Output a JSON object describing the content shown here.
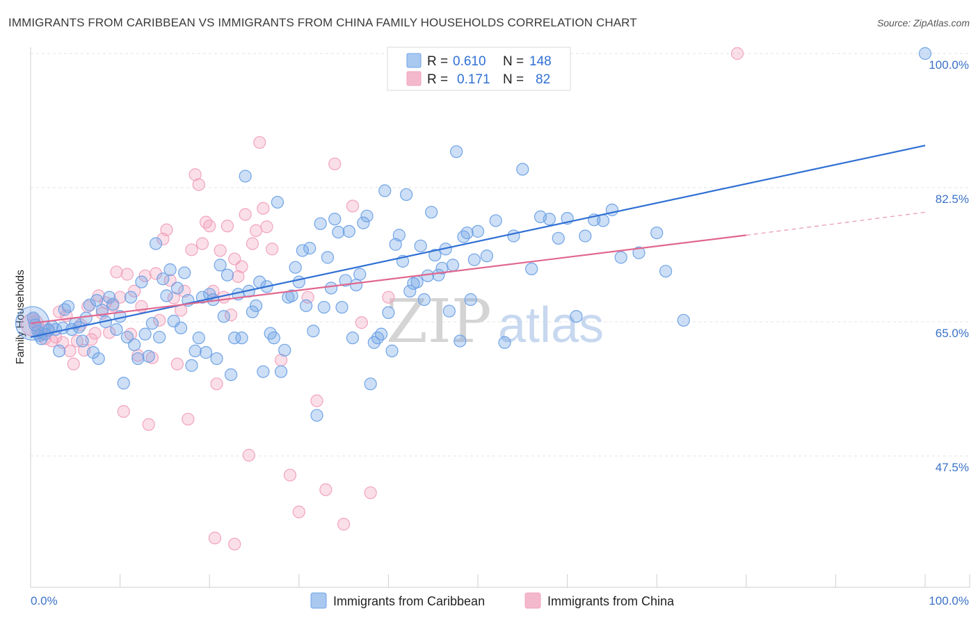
{
  "header": {
    "title": "IMMIGRANTS FROM CARIBBEAN VS IMMIGRANTS FROM CHINA FAMILY HOUSEHOLDS CORRELATION CHART",
    "source": "Source: ZipAtlas.com"
  },
  "watermark": {
    "part1": "ZIP",
    "part2": "atlas"
  },
  "legend": {
    "rows": [
      {
        "r_label": "R =",
        "r_value": "0.610",
        "n_label": "N =",
        "n_value": "148",
        "color": "#a8c8f0"
      },
      {
        "r_label": "R =",
        "r_value": "0.171",
        "n_label": "N =",
        "n_value": "82",
        "color": "#f4b8cc"
      }
    ]
  },
  "chart_data": {
    "type": "scatter",
    "ylabel": "Family Households",
    "xlabel": "",
    "xlim": [
      0,
      100
    ],
    "ylim": [
      32,
      102
    ],
    "x_tick_labels": [
      "0.0%",
      "100.0%"
    ],
    "y_ticks": [
      {
        "value": 100.0,
        "label": "100.0%"
      },
      {
        "value": 82.5,
        "label": "82.5%"
      },
      {
        "value": 65.0,
        "label": "65.0%"
      },
      {
        "value": 47.5,
        "label": "47.5%"
      }
    ],
    "grid": "horizontal dashed",
    "legend_placement": "top-center",
    "series": [
      {
        "name": "Immigrants from Caribbean",
        "color": "#6fa3e6",
        "line_color": "#2f6fd4",
        "trend": {
          "x0": 0,
          "y0": 63.0,
          "x1": 100,
          "y1": 88.0
        },
        "points": [
          [
            0.3,
            65.5
          ],
          [
            0.5,
            64.6
          ],
          [
            0.8,
            63.8
          ],
          [
            1.0,
            63.2
          ],
          [
            1.2,
            62.8
          ],
          [
            1.6,
            63.4
          ],
          [
            2.0,
            63.9
          ],
          [
            2.4,
            64.4
          ],
          [
            2.8,
            64.0
          ],
          [
            3.2,
            61.2
          ],
          [
            3.6,
            64.2
          ],
          [
            3.8,
            66.6
          ],
          [
            4.2,
            67.0
          ],
          [
            4.6,
            64.0
          ],
          [
            5.0,
            64.8
          ],
          [
            5.4,
            64.3
          ],
          [
            5.8,
            62.5
          ],
          [
            6.2,
            65.5
          ],
          [
            6.6,
            67.2
          ],
          [
            7.0,
            61.0
          ],
          [
            7.4,
            67.8
          ],
          [
            7.6,
            60.2
          ],
          [
            8.0,
            66.5
          ],
          [
            8.4,
            65.0
          ],
          [
            8.8,
            68.2
          ],
          [
            9.2,
            67.3
          ],
          [
            9.6,
            64.0
          ],
          [
            10.0,
            65.7
          ],
          [
            10.4,
            57.0
          ],
          [
            10.8,
            63.0
          ],
          [
            11.2,
            68.2
          ],
          [
            11.6,
            62.0
          ],
          [
            12.0,
            60.2
          ],
          [
            12.4,
            70.2
          ],
          [
            12.8,
            63.4
          ],
          [
            13.2,
            60.5
          ],
          [
            13.6,
            64.8
          ],
          [
            14.0,
            75.2
          ],
          [
            14.4,
            63.0
          ],
          [
            14.8,
            70.6
          ],
          [
            15.2,
            68.4
          ],
          [
            15.6,
            71.8
          ],
          [
            16.0,
            65.1
          ],
          [
            16.4,
            69.4
          ],
          [
            16.8,
            64.2
          ],
          [
            17.2,
            71.4
          ],
          [
            17.6,
            67.8
          ],
          [
            18.0,
            59.3
          ],
          [
            18.4,
            61.2
          ],
          [
            18.8,
            62.9
          ],
          [
            19.2,
            68.2
          ],
          [
            19.6,
            61.0
          ],
          [
            20.0,
            68.6
          ],
          [
            20.4,
            67.9
          ],
          [
            20.8,
            60.2
          ],
          [
            21.2,
            72.4
          ],
          [
            21.6,
            65.7
          ],
          [
            22.0,
            71.1
          ],
          [
            22.4,
            58.1
          ],
          [
            22.8,
            62.9
          ],
          [
            23.2,
            68.6
          ],
          [
            23.6,
            62.9
          ],
          [
            24.0,
            84.0
          ],
          [
            24.4,
            69.0
          ],
          [
            24.8,
            66.3
          ],
          [
            25.2,
            67.1
          ],
          [
            25.6,
            70.2
          ],
          [
            26.0,
            58.5
          ],
          [
            26.4,
            69.6
          ],
          [
            26.8,
            63.5
          ],
          [
            27.2,
            62.9
          ],
          [
            27.6,
            80.6
          ],
          [
            28.0,
            58.5
          ],
          [
            28.4,
            61.3
          ],
          [
            28.8,
            68.2
          ],
          [
            29.2,
            68.4
          ],
          [
            29.6,
            72.1
          ],
          [
            30.0,
            70.2
          ],
          [
            30.4,
            74.3
          ],
          [
            30.8,
            67.1
          ],
          [
            31.2,
            74.6
          ],
          [
            31.6,
            63.8
          ],
          [
            32.0,
            52.8
          ],
          [
            32.4,
            77.8
          ],
          [
            32.8,
            66.9
          ],
          [
            33.2,
            73.4
          ],
          [
            33.6,
            69.4
          ],
          [
            34.0,
            78.4
          ],
          [
            34.4,
            76.7
          ],
          [
            34.8,
            66.9
          ],
          [
            35.2,
            70.4
          ],
          [
            35.6,
            76.8
          ],
          [
            36.0,
            62.9
          ],
          [
            36.4,
            69.8
          ],
          [
            36.8,
            71.2
          ],
          [
            37.2,
            77.9
          ],
          [
            37.6,
            78.8
          ],
          [
            38.0,
            56.9
          ],
          [
            38.4,
            62.3
          ],
          [
            38.8,
            62.9
          ],
          [
            39.2,
            63.4
          ],
          [
            39.6,
            82.1
          ],
          [
            40.0,
            66.2
          ],
          [
            40.4,
            61.2
          ],
          [
            40.8,
            75.1
          ],
          [
            41.2,
            76.3
          ],
          [
            41.6,
            72.9
          ],
          [
            42.0,
            81.6
          ],
          [
            42.4,
            69.0
          ],
          [
            42.8,
            70.0
          ],
          [
            43.2,
            70.2
          ],
          [
            43.6,
            74.9
          ],
          [
            44.0,
            67.9
          ],
          [
            44.4,
            71.0
          ],
          [
            44.8,
            79.3
          ],
          [
            45.2,
            73.7
          ],
          [
            45.6,
            71.1
          ],
          [
            46.0,
            72.0
          ],
          [
            46.4,
            74.5
          ],
          [
            46.8,
            66.4
          ],
          [
            47.2,
            72.4
          ],
          [
            47.6,
            87.2
          ],
          [
            48.0,
            62.5
          ],
          [
            48.4,
            76.1
          ],
          [
            48.8,
            76.6
          ],
          [
            49.2,
            67.9
          ],
          [
            49.6,
            73.1
          ],
          [
            50.0,
            76.8
          ],
          [
            51.0,
            73.6
          ],
          [
            52.0,
            78.2
          ],
          [
            53.0,
            62.3
          ],
          [
            54.0,
            76.2
          ],
          [
            55.0,
            84.9
          ],
          [
            56.0,
            71.9
          ],
          [
            57.0,
            78.7
          ],
          [
            58.0,
            78.4
          ],
          [
            59.0,
            75.9
          ],
          [
            60.0,
            78.5
          ],
          [
            61.0,
            65.7
          ],
          [
            62.0,
            76.2
          ],
          [
            63.0,
            78.3
          ],
          [
            64.0,
            78.2
          ],
          [
            65.0,
            79.6
          ],
          [
            66.0,
            73.4
          ],
          [
            68.0,
            74.0
          ],
          [
            70.0,
            76.6
          ],
          [
            71.0,
            71.6
          ],
          [
            73.0,
            65.2
          ],
          [
            100.0,
            100.0
          ]
        ]
      },
      {
        "name": "Immigrants from China",
        "color": "#f2a3bd",
        "line_color": "#e0678e",
        "trend": {
          "x0": 0,
          "y0": 64.8,
          "x1": 80,
          "y1": 76.3
        },
        "trend_dashed": {
          "x0": 80,
          "y0": 76.3,
          "x1": 100,
          "y1": 79.3
        },
        "points": [
          [
            0.4,
            65.0
          ],
          [
            0.8,
            64.2
          ],
          [
            1.2,
            63.5
          ],
          [
            1.6,
            62.8
          ],
          [
            2.0,
            64.0
          ],
          [
            2.4,
            62.5
          ],
          [
            2.8,
            63.0
          ],
          [
            3.2,
            66.3
          ],
          [
            3.6,
            62.3
          ],
          [
            4.0,
            65.8
          ],
          [
            4.4,
            61.2
          ],
          [
            4.8,
            59.5
          ],
          [
            5.2,
            62.5
          ],
          [
            5.6,
            64.6
          ],
          [
            6.0,
            61.3
          ],
          [
            6.4,
            67.0
          ],
          [
            6.8,
            62.7
          ],
          [
            7.2,
            63.5
          ],
          [
            7.6,
            68.4
          ],
          [
            8.0,
            66.1
          ],
          [
            8.4,
            67.5
          ],
          [
            8.8,
            63.6
          ],
          [
            9.2,
            67.1
          ],
          [
            9.6,
            71.5
          ],
          [
            10.0,
            68.2
          ],
          [
            10.4,
            53.3
          ],
          [
            10.8,
            71.2
          ],
          [
            11.2,
            63.4
          ],
          [
            11.6,
            69.0
          ],
          [
            12.0,
            60.6
          ],
          [
            12.4,
            67.0
          ],
          [
            12.8,
            71.0
          ],
          [
            13.2,
            51.6
          ],
          [
            13.6,
            60.3
          ],
          [
            14.0,
            71.3
          ],
          [
            14.4,
            65.2
          ],
          [
            14.8,
            75.8
          ],
          [
            15.2,
            77.0
          ],
          [
            15.6,
            70.4
          ],
          [
            16.0,
            68.1
          ],
          [
            16.4,
            59.5
          ],
          [
            16.8,
            66.5
          ],
          [
            17.2,
            69.0
          ],
          [
            17.6,
            52.3
          ],
          [
            18.0,
            74.4
          ],
          [
            18.4,
            84.2
          ],
          [
            18.8,
            82.9
          ],
          [
            19.2,
            75.2
          ],
          [
            19.6,
            78.0
          ],
          [
            20.0,
            77.5
          ],
          [
            20.4,
            69.0
          ],
          [
            20.8,
            56.9
          ],
          [
            21.2,
            74.3
          ],
          [
            21.6,
            68.2
          ],
          [
            22.0,
            77.5
          ],
          [
            22.4,
            65.9
          ],
          [
            22.8,
            73.2
          ],
          [
            23.2,
            70.9
          ],
          [
            23.6,
            72.2
          ],
          [
            24.0,
            79.0
          ],
          [
            24.4,
            47.6
          ],
          [
            24.8,
            75.2
          ],
          [
            25.2,
            76.9
          ],
          [
            25.6,
            88.4
          ],
          [
            26.0,
            79.8
          ],
          [
            26.4,
            77.4
          ],
          [
            27.0,
            74.5
          ],
          [
            28.0,
            60.0
          ],
          [
            29.0,
            45.0
          ],
          [
            30.0,
            40.2
          ],
          [
            31.0,
            68.2
          ],
          [
            32.0,
            54.7
          ],
          [
            33.0,
            43.1
          ],
          [
            34.0,
            85.6
          ],
          [
            35.0,
            38.6
          ],
          [
            36.0,
            80.1
          ],
          [
            37.0,
            64.9
          ],
          [
            38.0,
            42.7
          ],
          [
            40.0,
            68.2
          ],
          [
            79.0,
            100.0
          ],
          [
            20.6,
            36.8
          ],
          [
            22.8,
            36.0
          ]
        ]
      }
    ]
  },
  "bottom_legend": {
    "items": [
      {
        "label": "Immigrants from Caribbean",
        "color": "#a8c8f0"
      },
      {
        "label": "Immigrants from China",
        "color": "#f4b8cc"
      }
    ]
  }
}
